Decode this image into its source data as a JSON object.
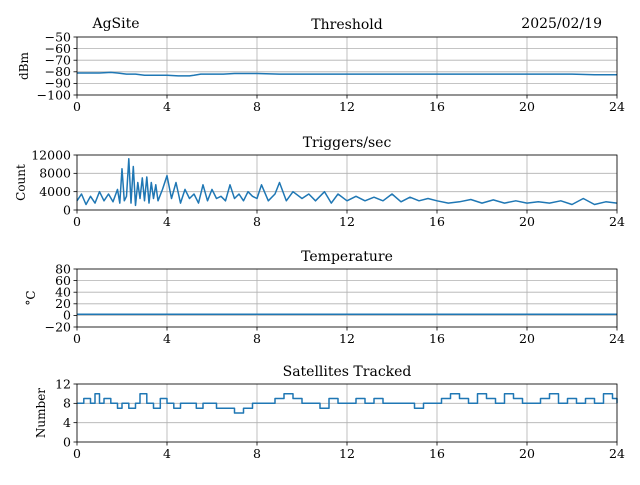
{
  "header": {
    "site": "AgSite",
    "date": "2025/02/19"
  },
  "chart_data": [
    {
      "type": "line",
      "title": "Threshold",
      "ylabel": "dBm",
      "xlabel": "",
      "xlim": [
        0,
        24
      ],
      "ylim": [
        -100,
        -50
      ],
      "grid": true,
      "xticks": [
        0,
        4,
        8,
        12,
        16,
        20,
        24
      ],
      "yticks": [
        -100,
        -90,
        -80,
        -70,
        -60,
        -50
      ],
      "ytick_labels": [
        "−100",
        "−90",
        "−80",
        "−70",
        "−60",
        "−50"
      ],
      "color": "#1f77b4",
      "series": [
        {
          "x": [
            0,
            0.5,
            1.0,
            1.5,
            1.8,
            2.2,
            2.6,
            3.0,
            3.5,
            4.0,
            4.5,
            5.0,
            5.2,
            5.5,
            6.0,
            6.5,
            7.0,
            8.0,
            9.0,
            10.0,
            11.0,
            12.0,
            13.0,
            14.0,
            15.0,
            16.0,
            17.0,
            18.0,
            19.0,
            20.0,
            21.0,
            22.0,
            23.0,
            24.0
          ],
          "y": [
            -81,
            -81,
            -81,
            -80.5,
            -81,
            -82,
            -82,
            -83,
            -83,
            -83,
            -83.5,
            -83.5,
            -83,
            -82,
            -82,
            -82,
            -81.5,
            -81.5,
            -82,
            -82,
            -82,
            -82,
            -82,
            -82,
            -82,
            -82,
            -82,
            -82,
            -82,
            -82,
            -82,
            -82,
            -82.5,
            -82.5
          ]
        }
      ]
    },
    {
      "type": "line",
      "title": "Triggers/sec",
      "ylabel": "Count",
      "xlabel": "",
      "xlim": [
        0,
        24
      ],
      "ylim": [
        0,
        12000
      ],
      "grid": true,
      "xticks": [
        0,
        4,
        8,
        12,
        16,
        20,
        24
      ],
      "yticks": [
        0,
        4000,
        8000,
        12000
      ],
      "ytick_labels": [
        "0",
        "4000",
        "8000",
        "12000"
      ],
      "color": "#1f77b4",
      "series": [
        {
          "x": [
            0,
            0.2,
            0.4,
            0.6,
            0.8,
            1.0,
            1.2,
            1.4,
            1.6,
            1.8,
            1.9,
            2.0,
            2.1,
            2.2,
            2.3,
            2.4,
            2.5,
            2.6,
            2.7,
            2.8,
            2.9,
            3.0,
            3.1,
            3.2,
            3.3,
            3.4,
            3.5,
            3.6,
            3.8,
            4.0,
            4.2,
            4.4,
            4.6,
            4.8,
            5.0,
            5.2,
            5.4,
            5.6,
            5.8,
            6.0,
            6.2,
            6.4,
            6.6,
            6.8,
            7.0,
            7.2,
            7.4,
            7.6,
            7.8,
            8.0,
            8.2,
            8.5,
            8.8,
            9.0,
            9.3,
            9.6,
            10.0,
            10.3,
            10.6,
            11.0,
            11.3,
            11.6,
            12.0,
            12.4,
            12.8,
            13.2,
            13.6,
            14.0,
            14.4,
            14.8,
            15.2,
            15.6,
            16.0,
            16.5,
            17.0,
            17.5,
            18.0,
            18.5,
            19.0,
            19.5,
            20.0,
            20.5,
            21.0,
            21.5,
            22.0,
            22.5,
            23.0,
            23.5,
            24.0
          ],
          "y": [
            2000,
            3500,
            1200,
            3000,
            1500,
            4000,
            2000,
            3500,
            1800,
            4500,
            1500,
            9000,
            2000,
            3000,
            11200,
            1500,
            9500,
            1000,
            6000,
            2500,
            7000,
            2000,
            7200,
            1500,
            6000,
            2500,
            5500,
            2000,
            4500,
            7500,
            2500,
            6000,
            1500,
            4500,
            2500,
            3500,
            1500,
            5500,
            2000,
            4500,
            2500,
            3000,
            2000,
            5500,
            2500,
            3500,
            2000,
            4000,
            3000,
            2500,
            5500,
            2000,
            3500,
            6000,
            2000,
            4000,
            2500,
            3500,
            2000,
            4000,
            1500,
            3500,
            2000,
            3000,
            2000,
            2800,
            2000,
            3500,
            1800,
            2800,
            2000,
            2500,
            2000,
            1500,
            1800,
            2300,
            1500,
            2200,
            1500,
            2000,
            1500,
            1800,
            1500,
            2000,
            1200,
            2500,
            1200,
            1800,
            1500
          ]
        }
      ]
    },
    {
      "type": "line",
      "title": "Temperature",
      "ylabel": "°C",
      "xlabel": "",
      "xlim": [
        0,
        24
      ],
      "ylim": [
        -20,
        80
      ],
      "grid": true,
      "xticks": [
        0,
        4,
        8,
        12,
        16,
        20,
        24
      ],
      "yticks": [
        -20,
        0,
        20,
        40,
        60,
        80
      ],
      "ytick_labels": [
        "−20",
        "0",
        "20",
        "40",
        "60",
        "80"
      ],
      "color": "#1f77b4",
      "series": [
        {
          "x": [
            0,
            4,
            8,
            12,
            16,
            20,
            24
          ],
          "y": [
            2,
            2,
            2,
            2,
            2,
            2,
            2
          ]
        }
      ]
    },
    {
      "type": "line",
      "title": "Satellites Tracked",
      "ylabel": "Number",
      "xlabel": "",
      "xlim": [
        0,
        24
      ],
      "ylim": [
        0,
        12
      ],
      "grid": true,
      "xticks": [
        0,
        4,
        8,
        12,
        16,
        20,
        24
      ],
      "yticks": [
        0,
        4,
        8,
        12
      ],
      "ytick_labels": [
        "0",
        "4",
        "8",
        "12"
      ],
      "color": "#1f77b4",
      "series": [
        {
          "step": true,
          "x": [
            0,
            0.3,
            0.6,
            0.8,
            1.0,
            1.2,
            1.5,
            1.8,
            2.0,
            2.3,
            2.6,
            2.8,
            3.1,
            3.4,
            3.7,
            4.0,
            4.3,
            4.6,
            5.0,
            5.3,
            5.6,
            5.9,
            6.2,
            6.5,
            7.0,
            7.4,
            7.8,
            8.0,
            8.4,
            8.8,
            9.2,
            9.6,
            10.0,
            10.4,
            10.8,
            11.2,
            11.6,
            12.0,
            12.4,
            12.8,
            13.2,
            13.6,
            14.0,
            14.5,
            15.0,
            15.4,
            15.8,
            16.2,
            16.6,
            17.0,
            17.4,
            17.8,
            18.2,
            18.6,
            19.0,
            19.4,
            19.8,
            20.2,
            20.6,
            21.0,
            21.4,
            21.8,
            22.2,
            22.6,
            23.0,
            23.4,
            23.8,
            24.0
          ],
          "y": [
            8,
            9,
            8,
            10,
            8,
            9,
            8,
            7,
            8,
            7,
            8,
            10,
            8,
            7,
            9,
            8,
            7,
            8,
            8,
            7,
            8,
            8,
            7,
            7,
            6,
            7,
            8,
            8,
            8,
            9,
            10,
            9,
            8,
            8,
            7,
            9,
            8,
            8,
            9,
            8,
            9,
            8,
            8,
            8,
            7,
            8,
            8,
            9,
            10,
            9,
            8,
            10,
            9,
            8,
            10,
            9,
            8,
            8,
            9,
            10,
            8,
            9,
            8,
            9,
            8,
            10,
            9,
            8
          ]
        }
      ]
    }
  ]
}
